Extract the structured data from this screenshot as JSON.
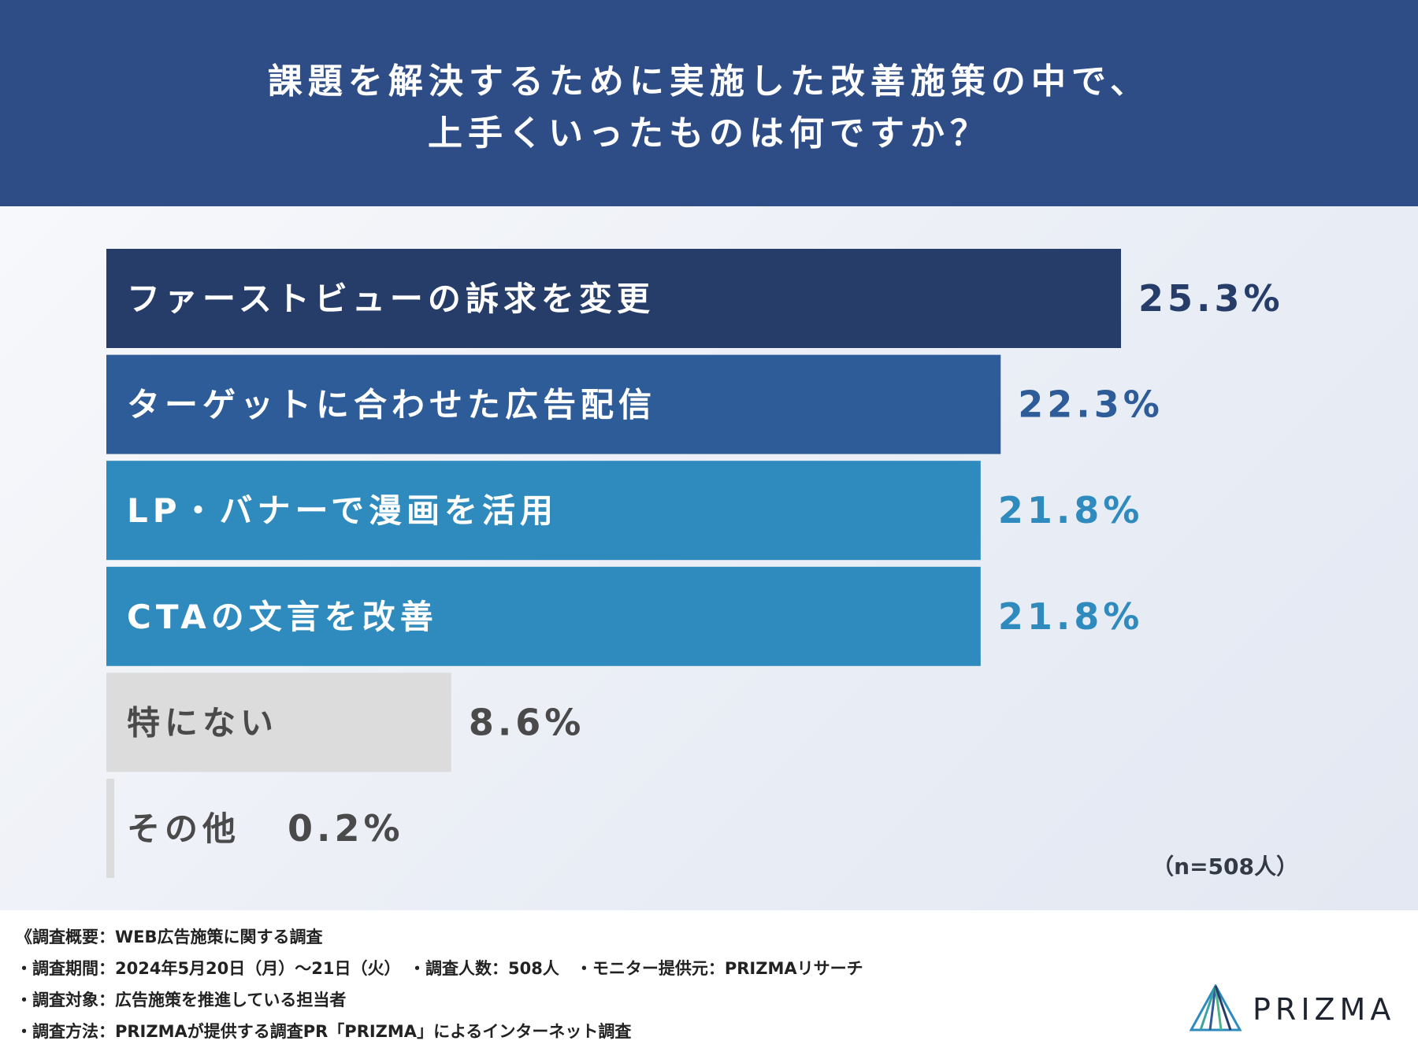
{
  "header": {
    "title_line1": "課題を解決するために実施した改善施策の中で、",
    "title_line2": "上手くいったものは何ですか？"
  },
  "chart_data": {
    "type": "bar",
    "orientation": "horizontal",
    "unit": "%",
    "xlim": [
      0,
      25.3
    ],
    "grid": false,
    "categories": [
      "ファーストビューの訴求を変更",
      "ターゲットに合わせた広告配信",
      "LP・バナーで漫画を活用",
      "CTAの文言を改善",
      "特にない",
      "その他"
    ],
    "values": [
      25.3,
      22.3,
      21.8,
      21.8,
      8.6,
      0.2
    ],
    "value_labels": [
      "25.3%",
      "22.3%",
      "21.8%",
      "21.8%",
      "8.6%",
      "0.2%"
    ],
    "bar_colors": [
      "#263c69",
      "#2d5c98",
      "#2f8bbe",
      "#2f8bbe",
      "#dcdcdc",
      "#dcdcdc"
    ],
    "label_colors": [
      "#ffffff",
      "#ffffff",
      "#ffffff",
      "#ffffff",
      "#4a4a4a",
      "#4a4a4a"
    ],
    "value_colors": [
      "#263c69",
      "#2d5c98",
      "#2f8bbe",
      "#2f8bbe",
      "#4a4a4a",
      "#4a4a4a"
    ]
  },
  "sample_note": "（n=508人）",
  "footer": {
    "line1": "《調査概要：WEB広告施策に関する調査",
    "line2": "・調査期間：2024年5月20日（月）〜21日（火）　・調査人数：508人　・モニター提供元：PRIZMAリサーチ",
    "line3": "・調査対象：広告施策を推進している担当者",
    "line4": "・調査方法：PRIZMAが提供する調査PR「PRIZMA」によるインターネット調査"
  },
  "logo": {
    "text": "PRIZMA",
    "icon": "prism-logo-icon"
  }
}
